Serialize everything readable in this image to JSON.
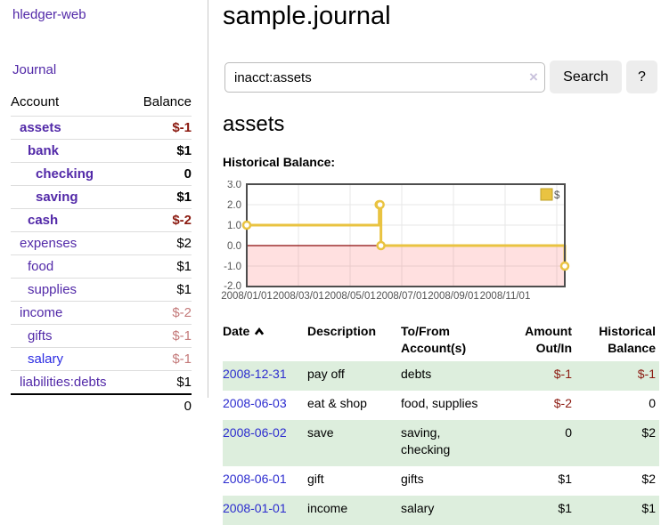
{
  "sidebar": {
    "app_title": "hledger-web",
    "journal_link": "Journal",
    "table": {
      "col_account": "Account",
      "col_balance": "Balance",
      "accounts": [
        {
          "name": "assets",
          "balance": "$-1"
        },
        {
          "name": "bank",
          "balance": "$1"
        },
        {
          "name": "checking",
          "balance": "0"
        },
        {
          "name": "saving",
          "balance": "$1"
        },
        {
          "name": "cash",
          "balance": "$-2"
        },
        {
          "name": "expenses",
          "balance": "$2"
        },
        {
          "name": "food",
          "balance": "$1"
        },
        {
          "name": "supplies",
          "balance": "$1"
        },
        {
          "name": "income",
          "balance": "$-2"
        },
        {
          "name": "gifts",
          "balance": "$-1"
        },
        {
          "name": "salary",
          "balance": "$-1"
        },
        {
          "name": "liabilities:debts",
          "balance": "$1"
        }
      ],
      "total": "0"
    }
  },
  "header": {
    "title": "sample.journal"
  },
  "search": {
    "query": "inacct:assets",
    "clear_icon": "×",
    "button_label": "Search",
    "help_label": "?"
  },
  "main": {
    "section_title": "assets",
    "chart_label": "Historical Balance:"
  },
  "chart_data": {
    "type": "line",
    "step": true,
    "legend_label": "$",
    "legend_position": "top-right",
    "grid": true,
    "x_range": [
      "2008-01-01",
      "2008-12-31"
    ],
    "ylim": [
      -2,
      3
    ],
    "y_ticks": [
      "3.0",
      "2.0",
      "1.0",
      "0.0",
      "-1.0",
      "-2.0"
    ],
    "x_ticks": [
      "2008/01/01",
      "2008/03/01",
      "2008/05/01",
      "2008/07/01",
      "2008/09/01",
      "2008/11/01"
    ],
    "series": [
      {
        "name": "$",
        "points": [
          {
            "date": "2008-01-01",
            "value": 1
          },
          {
            "date": "2008-06-01",
            "value": 2
          },
          {
            "date": "2008-06-02",
            "value": 2
          },
          {
            "date": "2008-06-03",
            "value": 0
          },
          {
            "date": "2008-12-31",
            "value": -1
          }
        ]
      }
    ]
  },
  "register": {
    "columns": {
      "date": "Date",
      "description": "Description",
      "accounts": "To/From Account(s)",
      "amount": "Amount Out/In",
      "balance": "Historical Balance"
    },
    "sort_column": "date",
    "sort_direction": "asc",
    "rows": [
      {
        "date": "2008-12-31",
        "description": "pay off",
        "accounts": "debts",
        "amount": "$-1",
        "balance": "$-1"
      },
      {
        "date": "2008-06-03",
        "description": "eat & shop",
        "accounts": "food, supplies",
        "amount": "$-2",
        "balance": "0"
      },
      {
        "date": "2008-06-02",
        "description": "save",
        "accounts": "saving, checking",
        "amount": "0",
        "balance": "$2"
      },
      {
        "date": "2008-06-01",
        "description": "gift",
        "accounts": "gifts",
        "amount": "$1",
        "balance": "$2"
      },
      {
        "date": "2008-01-01",
        "description": "income",
        "accounts": "salary",
        "amount": "$1",
        "balance": "$1"
      }
    ]
  },
  "colors": {
    "link_purple": "#5229A8",
    "link_blue": "#2B2BE2",
    "negative_strong": "#8B1A10",
    "negative_muted": "#C47A7A",
    "row_green": "#DDEEDD",
    "chart_line": "#E9C341",
    "chart_negative_fill": "#FFDEDE",
    "chart_zero_line": "#8B0000"
  }
}
